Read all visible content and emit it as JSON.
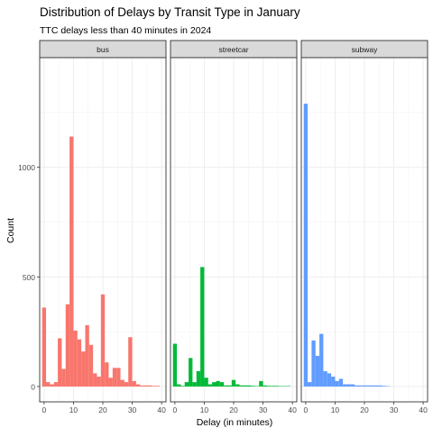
{
  "chart_data": {
    "type": "bar",
    "title": "Distribution of Delays by Transit Type in January",
    "subtitle": "TTC delays less than 40 minutes in 2024",
    "xlabel": "Delay (in minutes)",
    "ylabel": "Count",
    "xlim": [
      -1.5,
      41.5
    ],
    "ylim": [
      -70,
      1500
    ],
    "x_ticks": [
      0,
      10,
      20,
      30,
      40
    ],
    "y_ticks": [
      0,
      500,
      1000
    ],
    "bin_width": 1.33,
    "grid": true,
    "legend": "none",
    "panels": [
      {
        "name": "bus",
        "color": "#F8766D",
        "bins": [
          {
            "x": 0,
            "y": 360
          },
          {
            "x": 1.33,
            "y": 20
          },
          {
            "x": 2.67,
            "y": 10
          },
          {
            "x": 4,
            "y": 20
          },
          {
            "x": 5.33,
            "y": 220
          },
          {
            "x": 6.67,
            "y": 80
          },
          {
            "x": 8,
            "y": 375
          },
          {
            "x": 9.33,
            "y": 1140
          },
          {
            "x": 10.67,
            "y": 255
          },
          {
            "x": 12,
            "y": 215
          },
          {
            "x": 13.33,
            "y": 160
          },
          {
            "x": 14.67,
            "y": 280
          },
          {
            "x": 16,
            "y": 190
          },
          {
            "x": 17.33,
            "y": 60
          },
          {
            "x": 18.67,
            "y": 45
          },
          {
            "x": 20,
            "y": 420
          },
          {
            "x": 21.33,
            "y": 110
          },
          {
            "x": 22.67,
            "y": 40
          },
          {
            "x": 24,
            "y": 85
          },
          {
            "x": 25.33,
            "y": 85
          },
          {
            "x": 26.67,
            "y": 30
          },
          {
            "x": 28,
            "y": 20
          },
          {
            "x": 29.33,
            "y": 225
          },
          {
            "x": 30.67,
            "y": 25
          },
          {
            "x": 32,
            "y": 10
          },
          {
            "x": 33.33,
            "y": 5
          },
          {
            "x": 34.67,
            "y": 5
          },
          {
            "x": 36,
            "y": 5
          },
          {
            "x": 37.33,
            "y": 3
          },
          {
            "x": 38.67,
            "y": 3
          }
        ]
      },
      {
        "name": "streetcar",
        "color": "#00BA38",
        "bins": [
          {
            "x": 0,
            "y": 195
          },
          {
            "x": 1.33,
            "y": 10
          },
          {
            "x": 2.67,
            "y": 3
          },
          {
            "x": 4,
            "y": 20
          },
          {
            "x": 5.33,
            "y": 130
          },
          {
            "x": 6.67,
            "y": 20
          },
          {
            "x": 8,
            "y": 70
          },
          {
            "x": 9.33,
            "y": 545
          },
          {
            "x": 10.67,
            "y": 40
          },
          {
            "x": 12,
            "y": 10
          },
          {
            "x": 13.33,
            "y": 20
          },
          {
            "x": 14.67,
            "y": 25
          },
          {
            "x": 16,
            "y": 20
          },
          {
            "x": 17.33,
            "y": 5
          },
          {
            "x": 18.67,
            "y": 5
          },
          {
            "x": 20,
            "y": 30
          },
          {
            "x": 21.33,
            "y": 10
          },
          {
            "x": 22.67,
            "y": 5
          },
          {
            "x": 24,
            "y": 5
          },
          {
            "x": 25.33,
            "y": 5
          },
          {
            "x": 26.67,
            "y": 3
          },
          {
            "x": 28,
            "y": 2
          },
          {
            "x": 29.33,
            "y": 25
          },
          {
            "x": 30.67,
            "y": 5
          },
          {
            "x": 32,
            "y": 3
          },
          {
            "x": 33.33,
            "y": 3
          },
          {
            "x": 34.67,
            "y": 3
          },
          {
            "x": 36,
            "y": 2
          },
          {
            "x": 37.33,
            "y": 2
          },
          {
            "x": 38.67,
            "y": 2
          }
        ]
      },
      {
        "name": "subway",
        "color": "#619CFF",
        "bins": [
          {
            "x": 0,
            "y": 1290
          },
          {
            "x": 1.33,
            "y": 20
          },
          {
            "x": 2.67,
            "y": 210
          },
          {
            "x": 4,
            "y": 140
          },
          {
            "x": 5.33,
            "y": 240
          },
          {
            "x": 6.67,
            "y": 70
          },
          {
            "x": 8,
            "y": 60
          },
          {
            "x": 9.33,
            "y": 45
          },
          {
            "x": 10.67,
            "y": 25
          },
          {
            "x": 12,
            "y": 35
          },
          {
            "x": 13.33,
            "y": 10
          },
          {
            "x": 14.67,
            "y": 10
          },
          {
            "x": 16,
            "y": 10
          },
          {
            "x": 17.33,
            "y": 5
          },
          {
            "x": 18.67,
            "y": 5
          },
          {
            "x": 20,
            "y": 5
          },
          {
            "x": 21.33,
            "y": 5
          },
          {
            "x": 22.67,
            "y": 5
          },
          {
            "x": 24,
            "y": 5
          },
          {
            "x": 25.33,
            "y": 5
          },
          {
            "x": 26.67,
            "y": 3
          },
          {
            "x": 28,
            "y": 2
          }
        ]
      }
    ]
  }
}
